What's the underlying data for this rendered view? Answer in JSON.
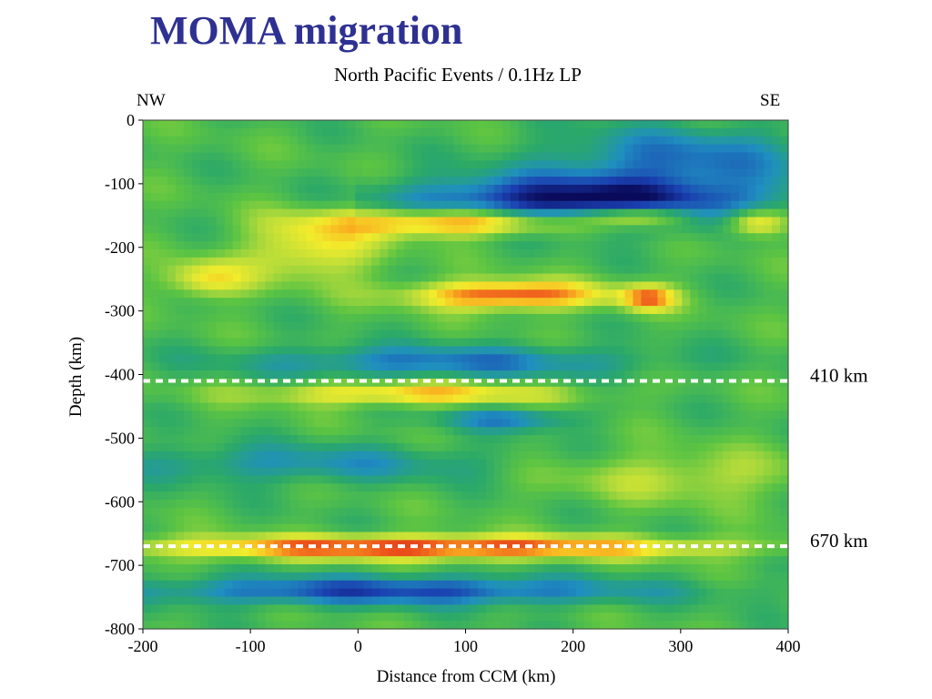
{
  "slide": {
    "title": "MOMA migration"
  },
  "chart_data": {
    "type": "heatmap",
    "title": "North Pacific Events / 0.1Hz LP",
    "xlabel": "Distance from CCM (km)",
    "ylabel": "Depth (km)",
    "xlim": [
      -200,
      400
    ],
    "ylim": [
      -800,
      0
    ],
    "x_ticks": [
      "-200",
      "-100",
      "0",
      "100",
      "200",
      "300",
      "400"
    ],
    "y_ticks": [
      "0",
      "-100",
      "-200",
      "-300",
      "-400",
      "-500",
      "-600",
      "-700",
      "-800"
    ],
    "corner_labels": {
      "left": "NW",
      "right": "SE"
    },
    "reference_lines": [
      {
        "depth": -410,
        "label": "410 km"
      },
      {
        "depth": -670,
        "label": "670 km"
      }
    ],
    "colorscale": [
      "#0a0a5a",
      "#1a3fb0",
      "#1f8fc0",
      "#2aa86a",
      "#5cc443",
      "#b8dc3a",
      "#f2ec2c",
      "#f9b020",
      "#ef5a1c",
      "#d41818"
    ],
    "grid": false,
    "legend": "none"
  }
}
